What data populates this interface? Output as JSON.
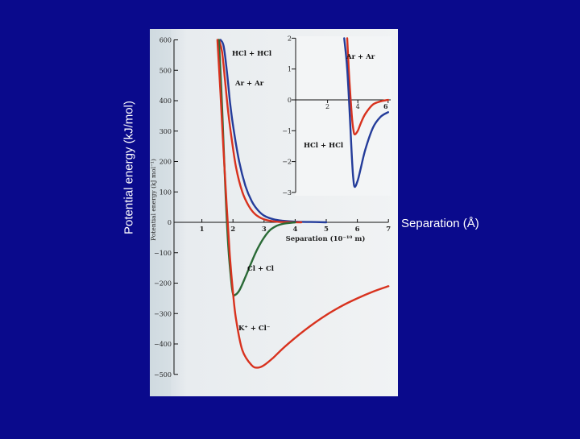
{
  "slide": {
    "y_axis_label": "Potential energy (kJ/mol)",
    "x_axis_label": "Separation (Å)"
  },
  "colors": {
    "background": "#0a0a8c",
    "figure_paper": "#eef1f3",
    "curve_red": "#d8321e",
    "curve_blue": "#243c9a",
    "curve_green": "#2a6a36",
    "axis": "#111111"
  },
  "chart_data": [
    {
      "type": "line",
      "title": "",
      "ylabel": "Potential energy (kJ mol⁻¹)",
      "xlabel": "Separation (10⁻¹⁰ m)",
      "xlim": [
        0,
        7
      ],
      "ylim": [
        -500,
        600
      ],
      "xticks": [
        1,
        2,
        3,
        4,
        5,
        6,
        7
      ],
      "yticks": [
        -500,
        -400,
        -300,
        -200,
        -100,
        0,
        100,
        200,
        300,
        400,
        500,
        600
      ],
      "series": [
        {
          "name": "HCl + HCl",
          "color": "#243c9a",
          "x": [
            1.6,
            1.7,
            1.8,
            1.9,
            2.0,
            2.2,
            2.4,
            2.6,
            2.8,
            3.0,
            3.3,
            3.6,
            4.0,
            4.5,
            5.0
          ],
          "y": [
            600,
            580,
            500,
            400,
            320,
            200,
            120,
            70,
            40,
            22,
            10,
            5,
            2,
            1,
            0
          ]
        },
        {
          "name": "Ar + Ar",
          "color": "#d8321e",
          "x": [
            1.55,
            1.65,
            1.75,
            1.85,
            1.95,
            2.1,
            2.3,
            2.5,
            2.7,
            2.9,
            3.1,
            3.4,
            3.8,
            4.2
          ],
          "y": [
            600,
            560,
            460,
            360,
            280,
            180,
            100,
            55,
            28,
            14,
            7,
            2,
            0.5,
            0
          ]
        },
        {
          "name": "Cl + Cl",
          "color": "#2a6a36",
          "x": [
            1.55,
            1.65,
            1.75,
            1.85,
            1.95,
            2.0,
            2.05,
            2.2,
            2.4,
            2.6,
            2.8,
            3.0,
            3.2,
            3.4,
            3.6,
            4.0
          ],
          "y": [
            600,
            380,
            120,
            -80,
            -200,
            -235,
            -240,
            -225,
            -180,
            -130,
            -85,
            -50,
            -25,
            -12,
            -5,
            0
          ]
        },
        {
          "name": "K⁺ + Cl⁻",
          "color": "#d8321e",
          "x": [
            1.5,
            1.6,
            1.7,
            1.8,
            1.9,
            2.0,
            2.1,
            2.3,
            2.6,
            2.8,
            3.0,
            3.3,
            3.6,
            4.0,
            4.5,
            5.0,
            5.5,
            6.0,
            6.5,
            7.0
          ],
          "y": [
            600,
            420,
            230,
            50,
            -110,
            -230,
            -320,
            -420,
            -470,
            -478,
            -470,
            -445,
            -415,
            -380,
            -340,
            -305,
            -275,
            -250,
            -228,
            -210
          ]
        }
      ]
    },
    {
      "type": "line",
      "title": "",
      "xlim": [
        0,
        6
      ],
      "ylim": [
        -3,
        2
      ],
      "xticks": [
        2,
        4,
        6
      ],
      "yticks": [
        -3,
        -2,
        -1,
        0,
        1,
        2
      ],
      "series": [
        {
          "name": "Ar + Ar",
          "color": "#d8321e",
          "x": [
            3.3,
            3.4,
            3.5,
            3.6,
            3.7,
            3.8,
            4.0,
            4.2,
            4.5,
            5.0,
            5.5,
            6.0
          ],
          "y": [
            2,
            1.0,
            0.2,
            -0.5,
            -0.95,
            -1.12,
            -1.0,
            -0.75,
            -0.45,
            -0.15,
            -0.05,
            0
          ]
        },
        {
          "name": "HCl + HCl",
          "color": "#243c9a",
          "x": [
            3.1,
            3.3,
            3.5,
            3.6,
            3.7,
            3.8,
            4.0,
            4.2,
            4.5,
            5.0,
            5.5,
            6.0
          ],
          "y": [
            2,
            1.0,
            -0.8,
            -1.8,
            -2.55,
            -2.82,
            -2.6,
            -2.2,
            -1.6,
            -0.9,
            -0.55,
            -0.4
          ]
        }
      ],
      "labels": [
        "Ar + Ar",
        "HCl + HCl"
      ]
    }
  ]
}
